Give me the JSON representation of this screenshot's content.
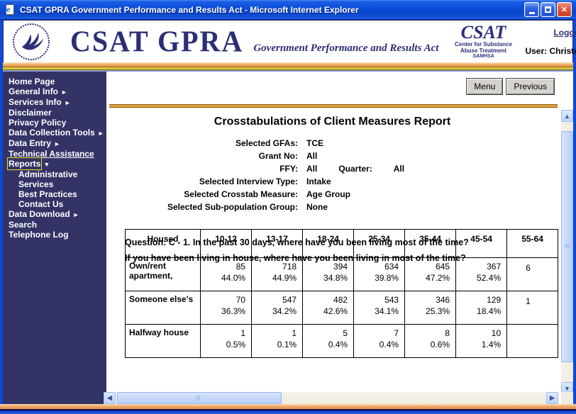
{
  "window": {
    "title": "CSAT GPRA Government Performance and Results Act - Microsoft Internet Explorer",
    "controls": {
      "minimize": "minimize",
      "maximize": "maximize",
      "close": "close"
    }
  },
  "header": {
    "brand_title": "CSAT GPRA",
    "brand_subtitle": "Government Performance and Results Act",
    "csat_logo": {
      "name": "CSAT",
      "line1": "Center for Substance",
      "line2": "Abuse Treatment",
      "line3": "SAMHSA"
    },
    "logout_label": "Logout",
    "user_label": "User: Christopher Shumway",
    "accent_gold": "#E9A13B",
    "accent_navy": "#2B2E77"
  },
  "sidebar": {
    "background": "#333366",
    "items": [
      {
        "label": "Home Page",
        "arrow": null,
        "indent": false,
        "underline": false,
        "focused": false
      },
      {
        "label": "General Info",
        "arrow": "right",
        "indent": false,
        "underline": false,
        "focused": false
      },
      {
        "label": "Services Info",
        "arrow": "right",
        "indent": false,
        "underline": false,
        "focused": false
      },
      {
        "label": "Disclaimer",
        "arrow": null,
        "indent": false,
        "underline": false,
        "focused": false
      },
      {
        "label": "Privacy Policy",
        "arrow": null,
        "indent": false,
        "underline": false,
        "focused": false
      },
      {
        "label": "Data Collection Tools",
        "arrow": "right",
        "indent": false,
        "underline": false,
        "focused": false
      },
      {
        "label": "Data Entry",
        "arrow": "right",
        "indent": false,
        "underline": false,
        "focused": false
      },
      {
        "label": "Technical Assistance",
        "arrow": null,
        "indent": false,
        "underline": true,
        "focused": false
      },
      {
        "label": "Reports",
        "arrow": "down",
        "indent": false,
        "underline": false,
        "focused": true
      },
      {
        "label": "Administrative",
        "arrow": null,
        "indent": true,
        "underline": false,
        "focused": false
      },
      {
        "label": "Services",
        "arrow": null,
        "indent": true,
        "underline": false,
        "focused": false
      },
      {
        "label": "Best Practices",
        "arrow": null,
        "indent": true,
        "underline": false,
        "focused": false
      },
      {
        "label": "Contact Us",
        "arrow": null,
        "indent": true,
        "underline": false,
        "focused": false
      },
      {
        "label": "Data Download",
        "arrow": "right",
        "indent": false,
        "underline": false,
        "focused": false
      },
      {
        "label": "Search",
        "arrow": null,
        "indent": false,
        "underline": false,
        "focused": false
      },
      {
        "label": "Telephone Log",
        "arrow": null,
        "indent": false,
        "underline": false,
        "focused": false
      }
    ]
  },
  "toolbar": {
    "menu_label": "Menu",
    "previous_label": "Previous"
  },
  "report": {
    "title": "Crosstabulations of Client Measures Report",
    "filters": [
      {
        "label": "Selected GFAs:",
        "value": "TCE"
      },
      {
        "label": "Grant No:",
        "value": "All"
      },
      {
        "label": "FFY:",
        "value": "All",
        "label2": "Quarter:",
        "value2": "All"
      },
      {
        "label": "Selected Interview Type:",
        "value": "Intake"
      },
      {
        "label": "Selected Crosstab Measure:",
        "value": "Age Group"
      },
      {
        "label": "Selected Sub-population Group:",
        "value": "None"
      }
    ],
    "question_line1": "Question: C - 1. In the past 30 days, where have you been living most of the time?",
    "question_line2": "If you have been living in house, where have you been living in most of the time?",
    "table": {
      "columns": [
        "Housed",
        "10-12",
        "13-17",
        "18-24",
        "25-34",
        "35-44",
        "45-54",
        "55-64"
      ],
      "rows": [
        {
          "label": "Own/rent apartment,",
          "cells": [
            {
              "count": "85",
              "pct": "44.0%"
            },
            {
              "count": "718",
              "pct": "44.9%"
            },
            {
              "count": "394",
              "pct": "34.8%"
            },
            {
              "count": "634",
              "pct": "39.8%"
            },
            {
              "count": "645",
              "pct": "47.2%"
            },
            {
              "count": "367",
              "pct": "52.4%"
            },
            {
              "count": "",
              "pct": "6"
            }
          ]
        },
        {
          "label": "Someone else's",
          "cells": [
            {
              "count": "70",
              "pct": "36.3%"
            },
            {
              "count": "547",
              "pct": "34.2%"
            },
            {
              "count": "482",
              "pct": "42.6%"
            },
            {
              "count": "543",
              "pct": "34.1%"
            },
            {
              "count": "346",
              "pct": "25.3%"
            },
            {
              "count": "129",
              "pct": "18.4%"
            },
            {
              "count": "",
              "pct": "1"
            }
          ]
        },
        {
          "label": "Halfway house",
          "cells": [
            {
              "count": "1",
              "pct": "0.5%"
            },
            {
              "count": "1",
              "pct": "0.1%"
            },
            {
              "count": "5",
              "pct": "0.4%"
            },
            {
              "count": "7",
              "pct": "0.4%"
            },
            {
              "count": "8",
              "pct": "0.6%"
            },
            {
              "count": "10",
              "pct": "1.4%"
            },
            {
              "count": "",
              "pct": ""
            }
          ]
        }
      ]
    }
  }
}
